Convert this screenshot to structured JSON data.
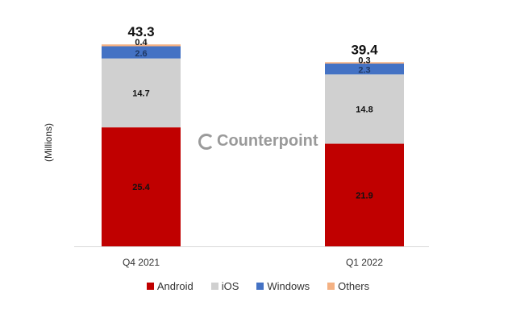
{
  "chart_data": {
    "type": "bar",
    "stacked": true,
    "ylabel": "(Millions)",
    "categories": [
      "Q4 2021",
      "Q1 2022"
    ],
    "totals": [
      "43.3",
      "39.4"
    ],
    "series": [
      {
        "name": "Android",
        "color": "#c00000",
        "values": [
          25.4,
          21.9
        ]
      },
      {
        "name": "iOS",
        "color": "#d0d0d0",
        "values": [
          14.7,
          14.8
        ]
      },
      {
        "name": "Windows",
        "color": "#4472c4",
        "values": [
          2.6,
          2.3
        ]
      },
      {
        "name": "Others",
        "color": "#f4b183",
        "values": [
          0.4,
          0.3
        ]
      }
    ],
    "legend_position": "bottom",
    "grid": false
  },
  "watermark": "Counterpoint"
}
